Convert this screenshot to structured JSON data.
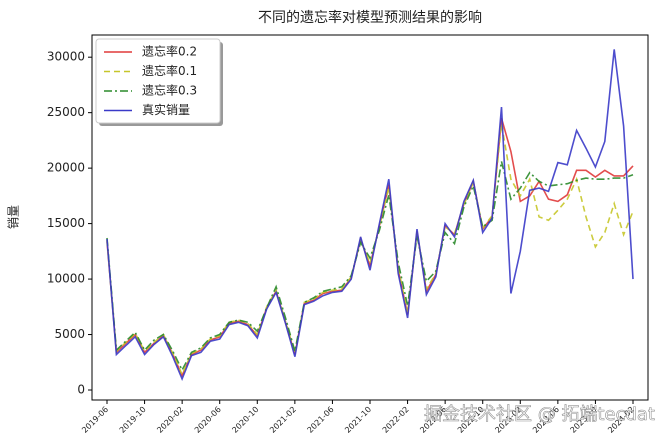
{
  "chart_data": {
    "type": "line",
    "title": "不同的遗忘率对模型预测结果的影响",
    "ylabel": "销量",
    "watermark": "掘金技术社区 @ 拓端tecdat",
    "categories": [
      "2019-06",
      null,
      null,
      null,
      "2019-10",
      null,
      null,
      null,
      "2020-02",
      null,
      null,
      null,
      "2020-06",
      null,
      null,
      null,
      "2020-10",
      null,
      null,
      null,
      "2021-02",
      null,
      null,
      null,
      "2021-06",
      null,
      null,
      null,
      "2021-10",
      null,
      null,
      null,
      "2022-02",
      null,
      null,
      null,
      "2022-06",
      null,
      null,
      null,
      "2022-10",
      null,
      null,
      null,
      "2023-02",
      null,
      null,
      null,
      "2023-06",
      null,
      null,
      null,
      "2023-10",
      null,
      null,
      null,
      "2024-02"
    ],
    "ylim": [
      -900,
      32000
    ],
    "yticks": [
      0,
      5000,
      10000,
      15000,
      20000,
      25000,
      30000
    ],
    "grid": false,
    "legend": "upper left",
    "series": [
      {
        "name": "遗忘率0.2",
        "color": "#e03a3a",
        "linestyle": "-",
        "values": [
          13400,
          3400,
          4200,
          5000,
          3400,
          4200,
          4900,
          3200,
          1300,
          3200,
          3600,
          4500,
          4800,
          6000,
          6200,
          5900,
          4900,
          7400,
          8900,
          6100,
          3200,
          7800,
          8100,
          8700,
          8900,
          9000,
          10100,
          13600,
          11200,
          14800,
          18500,
          10800,
          6800,
          14300,
          8900,
          10400,
          14800,
          14000,
          16800,
          18800,
          14500,
          15600,
          24500,
          21500,
          17000,
          17500,
          18800,
          17200,
          17000,
          17600,
          19800,
          19800,
          19200,
          19800,
          19300,
          19300,
          20200
        ]
      },
      {
        "name": "遗忘率0.1",
        "color": "#c6c62a",
        "linestyle": "--",
        "values": [
          13500,
          3500,
          4300,
          5100,
          3500,
          4300,
          5000,
          3300,
          1400,
          3300,
          3700,
          4600,
          4900,
          6100,
          6300,
          6000,
          5000,
          7500,
          9000,
          6200,
          3300,
          7900,
          8200,
          8800,
          9000,
          9100,
          10200,
          13500,
          11400,
          14700,
          18300,
          11000,
          7000,
          14200,
          9100,
          10500,
          14700,
          14100,
          16700,
          18700,
          14600,
          15700,
          24000,
          19000,
          17500,
          19000,
          15600,
          15300,
          16200,
          17200,
          19000,
          15600,
          12900,
          14200,
          16800,
          14000,
          16100
        ]
      },
      {
        "name": "遗忘率0.3",
        "color": "#2a8a2a",
        "linestyle": "-.",
        "values": [
          13700,
          3600,
          4400,
          5200,
          3600,
          4500,
          5000,
          3500,
          1800,
          3400,
          3800,
          4700,
          5000,
          6100,
          6300,
          6100,
          5300,
          7400,
          9300,
          6500,
          3500,
          7900,
          8300,
          8900,
          9100,
          9300,
          10300,
          13300,
          11900,
          14400,
          17600,
          11500,
          7600,
          13900,
          9800,
          10700,
          14200,
          13200,
          16500,
          18400,
          14700,
          15300,
          20600,
          17200,
          18200,
          19600,
          18800,
          18400,
          18500,
          18600,
          18900,
          19100,
          19000,
          19000,
          19100,
          19100,
          19400
        ]
      },
      {
        "name": "真实销量",
        "color": "#3a3ac8",
        "linestyle": "-",
        "values": [
          13600,
          3200,
          4000,
          4800,
          3200,
          4100,
          4800,
          3000,
          1000,
          3100,
          3400,
          4400,
          4600,
          5900,
          6100,
          5800,
          4700,
          7300,
          8800,
          6000,
          3000,
          7700,
          8000,
          8500,
          8800,
          8900,
          10000,
          13800,
          10800,
          15000,
          19000,
          10500,
          6500,
          14500,
          8600,
          10200,
          15000,
          13800,
          17000,
          18900,
          14200,
          15500,
          25500,
          8700,
          12500,
          18000,
          18200,
          17900,
          20500,
          20300,
          23400,
          21800,
          20100,
          22400,
          30700,
          23800,
          10000
        ]
      }
    ]
  }
}
